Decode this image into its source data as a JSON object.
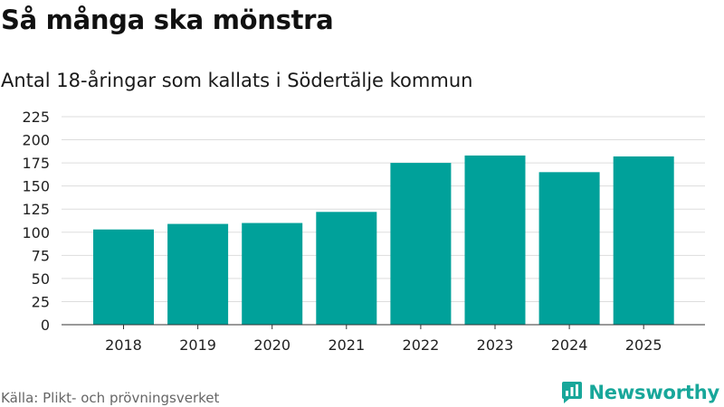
{
  "header": {
    "title": "Så många ska mönstra",
    "subtitle": "Antal 18-åringar som kallats i Södertälje kommun"
  },
  "footer": {
    "source": "Källa: Plikt- och prövningsverket",
    "brand": "Newsworthy",
    "brand_icon": "newsworthy-logo-icon"
  },
  "colors": {
    "bar": "#00a19a",
    "grid": "#dddddd",
    "axis": "#333333",
    "brand": "#18a79a"
  },
  "chart_data": {
    "type": "bar",
    "title": "Så många ska mönstra",
    "subtitle": "Antal 18-åringar som kallats i Södertälje kommun",
    "xlabel": "",
    "ylabel": "",
    "categories": [
      "2018",
      "2019",
      "2020",
      "2021",
      "2022",
      "2023",
      "2024",
      "2025"
    ],
    "values": [
      103,
      109,
      110,
      122,
      175,
      183,
      165,
      182
    ],
    "ylim": [
      0,
      225
    ],
    "yticks": [
      0,
      25,
      50,
      75,
      100,
      125,
      150,
      175,
      200,
      225
    ],
    "grid": true,
    "legend": "none"
  }
}
